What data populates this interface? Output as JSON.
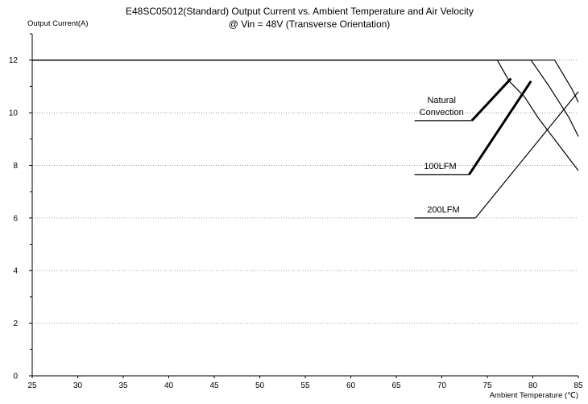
{
  "chart_data": {
    "type": "line",
    "title": "E48SC05012(Standard)  Output Current vs. Ambient Temperature and Air Velocity",
    "subtitle": "@ Vin = 48V (Transverse Orientation)",
    "xlabel": "Ambient Temperature (℃)",
    "ylabel": "Output Current(A)",
    "xlim": [
      25,
      85
    ],
    "ylim": [
      0,
      13
    ],
    "x_ticks": [
      "25",
      "30",
      "35",
      "40",
      "45",
      "50",
      "55",
      "60",
      "65",
      "70",
      "75",
      "80",
      "85"
    ],
    "y_ticks": [
      "0",
      "2",
      "4",
      "6",
      "8",
      "10",
      "12"
    ],
    "grid": {
      "horizontal": true,
      "vertical": false,
      "style": "dotted"
    },
    "series": [
      {
        "name": "Natural Convection",
        "x": [
          25,
          76.1,
          77.4,
          79.1,
          80.6,
          85
        ],
        "y": [
          12,
          12,
          11.2,
          10.6,
          9.8,
          7.8
        ]
      },
      {
        "name": "100LFM",
        "x": [
          25,
          79.8,
          81.8,
          84,
          85
        ],
        "y": [
          12,
          12,
          11.0,
          9.8,
          9.1
        ]
      },
      {
        "name": "200LFM",
        "x": [
          25,
          82.4,
          84.3,
          85
        ],
        "y": [
          12,
          12,
          10.9,
          10.4
        ]
      }
    ],
    "annotations": [
      {
        "name": "Natural Convection",
        "lines": [
          "Natural",
          "Convection"
        ],
        "leader_x": [
          67,
          73.3,
          77.6
        ],
        "leader_y": [
          9.7,
          9.7,
          11.3
        ],
        "bold_segment": true
      },
      {
        "name": "100LFM",
        "lines": [
          "100LFM"
        ],
        "leader_x": [
          67,
          73,
          79.8
        ],
        "leader_y": [
          7.65,
          7.65,
          11.2
        ],
        "bold_segment": true
      },
      {
        "name": "200LFM",
        "lines": [
          "200LFM"
        ],
        "leader_x": [
          67,
          73.7,
          85
        ],
        "leader_y": [
          6.0,
          6.0,
          10.8
        ],
        "bold_segment": false
      }
    ]
  }
}
